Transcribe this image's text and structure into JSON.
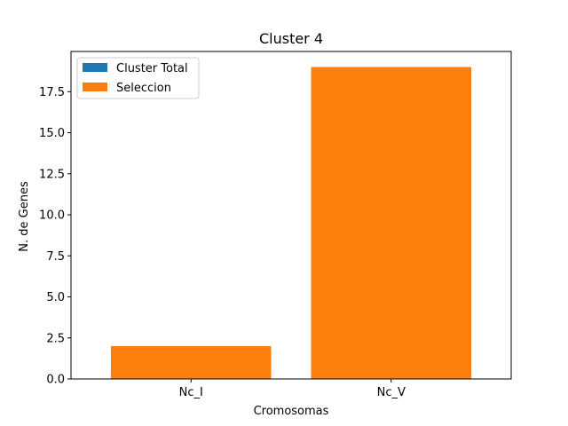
{
  "chart_data": {
    "type": "bar",
    "title": "Cluster 4",
    "xlabel": "Cromosomas",
    "ylabel": "N. de Genes",
    "categories": [
      "Nc_I",
      "Nc_V"
    ],
    "series": [
      {
        "name": "Cluster Total",
        "values": [
          2,
          19
        ],
        "color": "#1f77b4"
      },
      {
        "name": "Seleccion",
        "values": [
          2,
          19
        ],
        "color": "#ff7f0e"
      }
    ],
    "ylim": [
      0,
      19.95
    ],
    "yticks": [
      "0.0",
      "2.5",
      "5.0",
      "7.5",
      "10.0",
      "12.5",
      "15.0",
      "17.5"
    ],
    "ytick_values": [
      0,
      2.5,
      5,
      7.5,
      10,
      12.5,
      15,
      17.5
    ],
    "grid": false,
    "legend_position": "upper-left"
  }
}
